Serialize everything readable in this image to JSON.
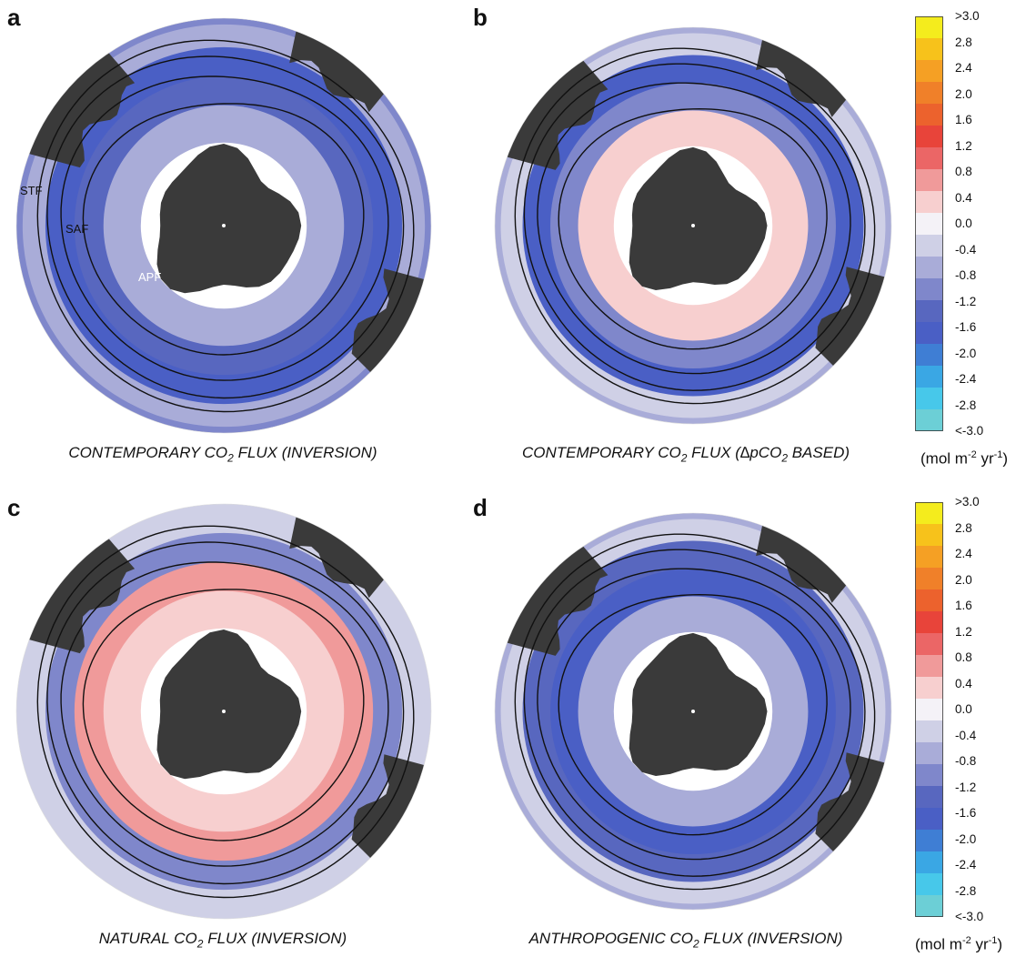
{
  "panels": [
    {
      "letter": "a",
      "caption_pre": "CONTEMPORARY CO",
      "caption_sub": "2",
      "caption_post": " FLUX (INVERSION)"
    },
    {
      "letter": "b",
      "caption_pre": "CONTEMPORARY CO",
      "caption_sub": "2",
      "caption_post": " FLUX (∆pCO",
      "caption_sub2": "2",
      "caption_post2": " BASED)"
    },
    {
      "letter": "c",
      "caption_pre": "NATURAL CO",
      "caption_sub": "2",
      "caption_post": " FLUX (INVERSION)"
    },
    {
      "letter": "d",
      "caption_pre": "ANTHROPOGENIC CO",
      "caption_sub": "2",
      "caption_post": " FLUX (INVERSION)"
    }
  ],
  "front_labels": {
    "stf": "STF",
    "saf": "SAF",
    "apf": "APF"
  },
  "colorbar": {
    "ticks": [
      ">3.0",
      "2.8",
      "2.4",
      "2.0",
      "1.6",
      "1.2",
      "0.8",
      "0.4",
      "0.0",
      "-0.4",
      "-0.8",
      "-1.2",
      "-1.6",
      "-2.0",
      "-2.4",
      "-2.8",
      "<-3.0"
    ],
    "colors": [
      "#f4ec1d",
      "#f7c21b",
      "#f5a024",
      "#f08029",
      "#ec622d",
      "#e8443a",
      "#eb6666",
      "#f09a9a",
      "#f7cfcf",
      "#f4f2f7",
      "#cfd0e6",
      "#a9acd8",
      "#7f87cb",
      "#5867bf",
      "#4a5fc5",
      "#3f7ed4",
      "#3aa7e4",
      "#47c8ea",
      "#6ccfd6"
    ],
    "unit_pre": "(mol m",
    "unit_sup1": "-2",
    "unit_mid": " yr",
    "unit_sup2": "-1",
    "unit_post": ")"
  },
  "chart_data": [
    {
      "type": "heatmap",
      "title": "CONTEMPORARY CO2 FLUX (INVERSION)",
      "units": "mol m-2 yr-1",
      "color_range": [
        -3.0,
        3.0
      ],
      "regions": {
        "antarctic_zone": -0.6,
        "polar_frontal_zone": -1.3,
        "subantarctic_zone": -1.6,
        "subtropical_zone": -0.9
      }
    },
    {
      "type": "heatmap",
      "title": "CONTEMPORARY CO2 FLUX (∆pCO2 BASED)",
      "units": "mol m-2 yr-1",
      "color_range": [
        -3.0,
        3.0
      ],
      "regions": {
        "antarctic_zone": 0.5,
        "polar_frontal_zone": -1.0,
        "subantarctic_zone": -1.5,
        "subtropical_zone": -0.5
      }
    },
    {
      "type": "heatmap",
      "title": "NATURAL CO2 FLUX (INVERSION)",
      "units": "mol m-2 yr-1",
      "color_range": [
        -3.0,
        3.0
      ],
      "regions": {
        "antarctic_zone": 0.2,
        "polar_frontal_zone": 0.8,
        "subantarctic_zone": -1.0,
        "subtropical_zone": -0.3
      }
    },
    {
      "type": "heatmap",
      "title": "ANTHROPOGENIC CO2 FLUX (INVERSION)",
      "units": "mol m-2 yr-1",
      "color_range": [
        -3.0,
        3.0
      ],
      "regions": {
        "antarctic_zone": -0.8,
        "polar_frontal_zone": -1.5,
        "subantarctic_zone": -1.2,
        "subtropical_zone": -0.5
      }
    }
  ]
}
